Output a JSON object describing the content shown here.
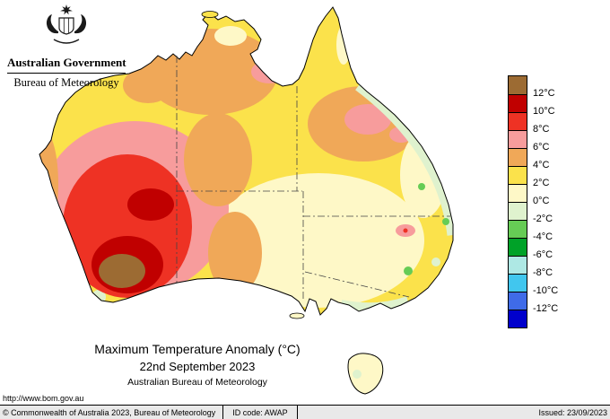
{
  "header": {
    "government": "Australian Government",
    "agency": "Bureau of Meteorology"
  },
  "title_block": {
    "title": "Maximum Temperature Anomaly (°C)",
    "date": "22nd September 2023",
    "attribution": "Australian Bureau of Meteorology"
  },
  "legend": {
    "labels": [
      "12°C",
      "10°C",
      "8°C",
      "6°C",
      "4°C",
      "2°C",
      "0°C",
      "-2°C",
      "-4°C",
      "-6°C",
      "-8°C",
      "-10°C",
      "-12°C"
    ],
    "colors": [
      "#9C6B33",
      "#C00000",
      "#EE3224",
      "#F79C9C",
      "#F0A858",
      "#FBE24B",
      "#FEF8C7",
      "#DFF2CE",
      "#66CC55",
      "#00A228",
      "#AEE8E4",
      "#41C6EE",
      "#3F6BE8",
      "#0000CC"
    ]
  },
  "footer": {
    "url": "http://www.bom.gov.au",
    "copyright": "© Commonwealth of Australia 2023, Bureau of Meteorology",
    "id_code": "ID code: AWAP",
    "issued": "Issued: 23/09/2023"
  }
}
